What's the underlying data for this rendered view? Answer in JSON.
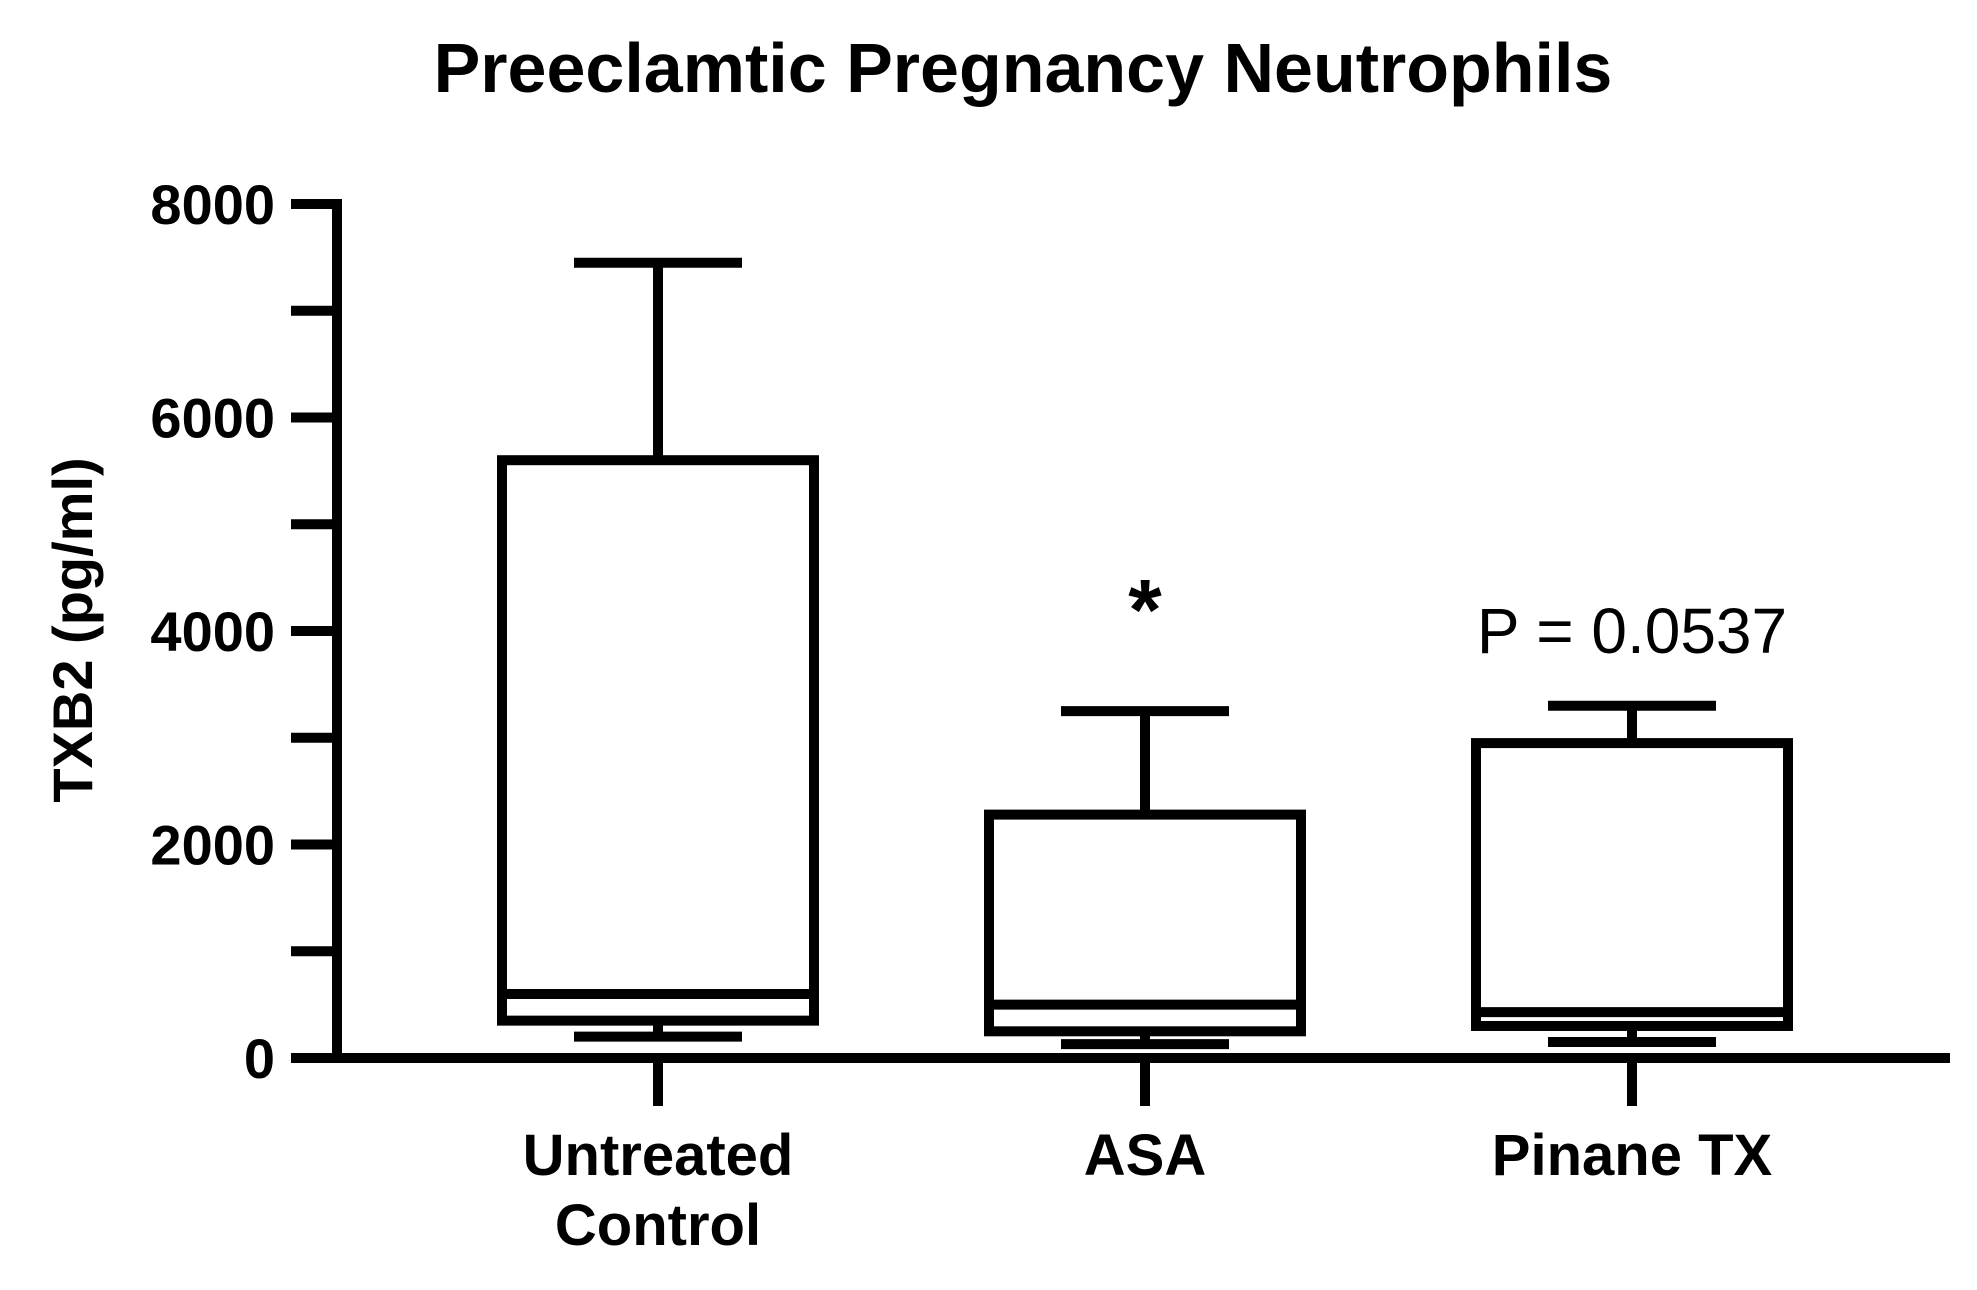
{
  "chart_data": {
    "type": "box",
    "title": "Preeclamtic Pregnancy Neutrophils",
    "xlabel": "",
    "ylabel": "TXB2 (pg/ml)",
    "ylim": [
      0,
      8000
    ],
    "yticks": [
      0,
      2000,
      4000,
      6000,
      8000
    ],
    "ytick_labels": [
      "0",
      "2000",
      "4000",
      "6000",
      "8000"
    ],
    "y_minor_step": 1000,
    "grid": false,
    "categories": [
      {
        "label_lines": [
          "Untreated",
          "Control"
        ]
      },
      {
        "label_lines": [
          "ASA"
        ]
      },
      {
        "label_lines": [
          "Pinane TX"
        ]
      }
    ],
    "boxes": [
      {
        "min": 200,
        "q1": 350,
        "median": 600,
        "q3": 5600,
        "max": 7450
      },
      {
        "min": 130,
        "q1": 250,
        "median": 500,
        "q3": 2280,
        "max": 3250
      },
      {
        "min": 150,
        "q1": 300,
        "median": 430,
        "q3": 2950,
        "max": 3300
      }
    ],
    "annotations": [
      {
        "category_index": 1,
        "text": "*",
        "value": 4200,
        "style": "star"
      },
      {
        "category_index": 2,
        "text": "P = 0.0537",
        "value": 4000,
        "style": "p"
      }
    ]
  }
}
